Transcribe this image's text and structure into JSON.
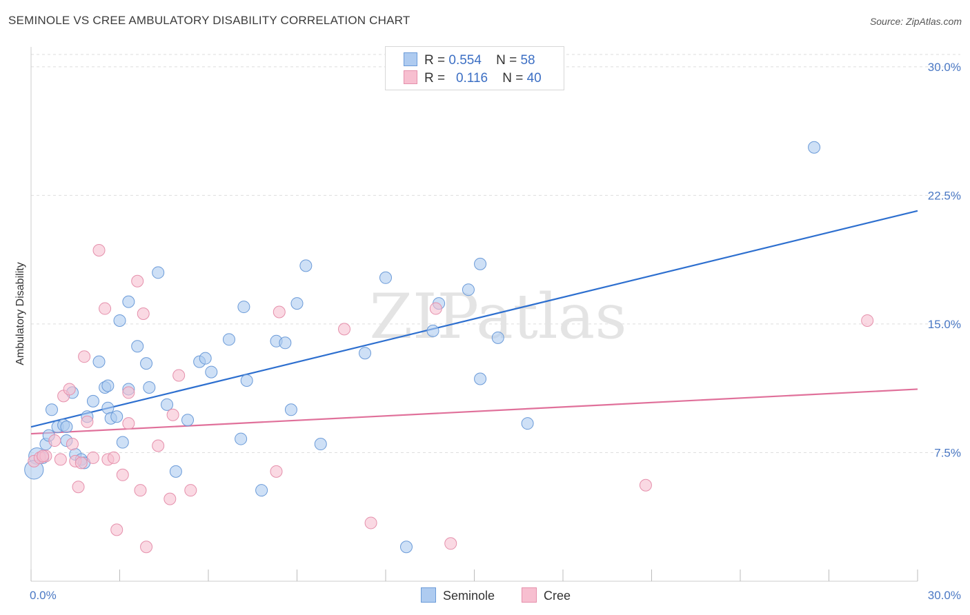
{
  "title": "SEMINOLE VS CREE AMBULATORY DISABILITY CORRELATION CHART",
  "source": "Source: ZipAtlas.com",
  "watermark": "ZIPatlas",
  "legend": {
    "rows": [
      {
        "r_label": "R =",
        "r_value": "0.554",
        "n_label": "N =",
        "n_value": "58"
      },
      {
        "r_label": "R =",
        "r_value": "0.116",
        "n_label": "N =",
        "n_value": "40"
      }
    ]
  },
  "bottom_legend": {
    "seminole": "Seminole",
    "cree": "Cree"
  },
  "colors": {
    "seminole_fill": "#aecbf0",
    "seminole_stroke": "#6a9ad8",
    "seminole_line": "#2d6fcf",
    "cree_fill": "#f7bfd0",
    "cree_stroke": "#e58fab",
    "cree_line": "#e0709a",
    "tick_text": "#4a78c4",
    "grid": "#dddddd"
  },
  "chart_data": {
    "type": "scatter",
    "title": "SEMINOLE VS CREE AMBULATORY DISABILITY CORRELATION CHART",
    "xlabel": "",
    "ylabel": "Ambulatory Disability",
    "xlim": [
      0,
      30
    ],
    "ylim": [
      0,
      31
    ],
    "x_tick_labels": [
      "0.0%",
      "30.0%"
    ],
    "y_ticks": [
      7.5,
      15.0,
      22.5,
      30.0
    ],
    "y_tick_labels": [
      "7.5%",
      "15.0%",
      "22.5%",
      "30.0%"
    ],
    "grid": true,
    "legend_position": "top-center",
    "series": [
      {
        "name": "Seminole",
        "r": 0.554,
        "n": 58,
        "trend": {
          "x": [
            0,
            30
          ],
          "y": [
            9.0,
            21.6
          ]
        },
        "points": [
          [
            0.2,
            7.3
          ],
          [
            0.4,
            7.2
          ],
          [
            0.5,
            8.0
          ],
          [
            0.6,
            8.5
          ],
          [
            0.7,
            10.0
          ],
          [
            0.9,
            9.0
          ],
          [
            1.1,
            9.1
          ],
          [
            1.2,
            9.0
          ],
          [
            1.2,
            8.2
          ],
          [
            1.4,
            11.0
          ],
          [
            1.5,
            7.4
          ],
          [
            1.7,
            7.1
          ],
          [
            1.8,
            6.9
          ],
          [
            1.9,
            9.6
          ],
          [
            2.1,
            10.5
          ],
          [
            2.3,
            12.8
          ],
          [
            2.5,
            11.3
          ],
          [
            2.6,
            11.4
          ],
          [
            2.6,
            10.1
          ],
          [
            2.7,
            9.5
          ],
          [
            2.9,
            9.6
          ],
          [
            3.0,
            15.2
          ],
          [
            3.1,
            8.1
          ],
          [
            3.3,
            11.2
          ],
          [
            3.3,
            16.3
          ],
          [
            3.6,
            13.7
          ],
          [
            3.9,
            12.7
          ],
          [
            4.0,
            11.3
          ],
          [
            4.3,
            18.0
          ],
          [
            4.6,
            10.3
          ],
          [
            4.9,
            6.4
          ],
          [
            5.3,
            9.4
          ],
          [
            5.7,
            12.8
          ],
          [
            5.9,
            13.0
          ],
          [
            6.1,
            12.2
          ],
          [
            6.7,
            14.1
          ],
          [
            7.1,
            8.3
          ],
          [
            7.2,
            16.0
          ],
          [
            7.3,
            11.7
          ],
          [
            7.8,
            5.3
          ],
          [
            8.3,
            14.0
          ],
          [
            8.6,
            13.9
          ],
          [
            8.8,
            10.0
          ],
          [
            9.0,
            16.2
          ],
          [
            9.3,
            18.4
          ],
          [
            9.8,
            8.0
          ],
          [
            11.3,
            13.3
          ],
          [
            12.0,
            17.7
          ],
          [
            12.7,
            2.0
          ],
          [
            13.6,
            14.6
          ],
          [
            13.8,
            16.2
          ],
          [
            14.8,
            17.0
          ],
          [
            15.2,
            11.8
          ],
          [
            15.2,
            18.5
          ],
          [
            15.8,
            14.2
          ],
          [
            16.8,
            9.2
          ],
          [
            26.5,
            25.3
          ],
          [
            0.1,
            6.5
          ]
        ],
        "sizes": [
          14,
          10,
          10,
          10,
          10,
          10,
          10,
          10,
          10,
          10,
          10,
          10,
          10,
          10,
          10,
          10,
          10,
          10,
          10,
          10,
          10,
          10,
          10,
          10,
          10,
          10,
          10,
          10,
          10,
          10,
          10,
          10,
          10,
          10,
          10,
          10,
          10,
          10,
          10,
          10,
          10,
          10,
          10,
          10,
          10,
          10,
          10,
          10,
          10,
          10,
          10,
          10,
          10,
          10,
          10,
          10,
          10,
          16
        ]
      },
      {
        "name": "Cree",
        "r": 0.116,
        "n": 40,
        "trend": {
          "x": [
            0,
            30
          ],
          "y": [
            8.6,
            11.2
          ]
        },
        "points": [
          [
            0.1,
            7.0
          ],
          [
            0.3,
            7.2
          ],
          [
            0.5,
            7.3
          ],
          [
            0.8,
            8.2
          ],
          [
            1.0,
            7.1
          ],
          [
            1.1,
            10.8
          ],
          [
            1.3,
            11.2
          ],
          [
            1.4,
            8.0
          ],
          [
            1.5,
            7.0
          ],
          [
            1.6,
            5.5
          ],
          [
            1.8,
            13.1
          ],
          [
            1.9,
            9.3
          ],
          [
            2.1,
            7.2
          ],
          [
            2.3,
            19.3
          ],
          [
            2.5,
            15.9
          ],
          [
            2.6,
            7.1
          ],
          [
            2.8,
            7.2
          ],
          [
            2.9,
            3.0
          ],
          [
            3.1,
            6.2
          ],
          [
            3.3,
            11.0
          ],
          [
            3.3,
            9.2
          ],
          [
            3.6,
            17.5
          ],
          [
            3.7,
            5.3
          ],
          [
            3.8,
            15.6
          ],
          [
            3.9,
            2.0
          ],
          [
            4.3,
            7.9
          ],
          [
            4.7,
            4.8
          ],
          [
            4.8,
            9.7
          ],
          [
            5.0,
            12.0
          ],
          [
            5.4,
            5.3
          ],
          [
            8.3,
            6.4
          ],
          [
            8.4,
            15.7
          ],
          [
            10.6,
            14.7
          ],
          [
            11.5,
            3.4
          ],
          [
            13.7,
            15.9
          ],
          [
            14.2,
            2.2
          ],
          [
            20.8,
            5.6
          ],
          [
            28.3,
            15.2
          ],
          [
            0.4,
            7.3
          ],
          [
            1.7,
            6.9
          ]
        ],
        "sizes": [
          10,
          10,
          10,
          10,
          10,
          10,
          10,
          10,
          10,
          10,
          10,
          10,
          10,
          10,
          10,
          10,
          10,
          10,
          10,
          10,
          10,
          10,
          10,
          10,
          10,
          10,
          10,
          10,
          10,
          10,
          10,
          10,
          10,
          10,
          10,
          10,
          10,
          10,
          10,
          10
        ]
      }
    ]
  }
}
